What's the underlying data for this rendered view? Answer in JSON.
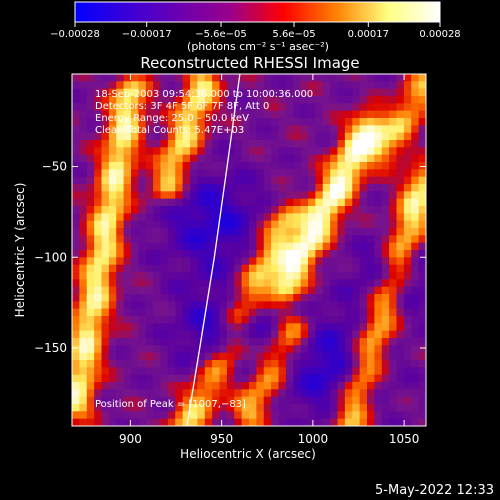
{
  "chart_data": {
    "type": "heatmap",
    "title": "Reconstructed RHESSI Image",
    "xlabel": "Heliocentric X (arcsec)",
    "ylabel": "Heliocentric Y (arcsec)",
    "xlim": [
      868,
      1062
    ],
    "ylim": [
      -193,
      1
    ],
    "x_ticks": [
      900,
      950,
      1000,
      1050
    ],
    "x_tick_labels": [
      "900",
      "950",
      "1000",
      "1050"
    ],
    "y_ticks": [
      -50,
      -100,
      -150
    ],
    "y_tick_labels": [
      "−50",
      "−100",
      "−150"
    ],
    "colorbar": {
      "range": [
        -0.00028,
        0.00028
      ],
      "tick_values": [
        -0.00028,
        -0.00017,
        -5.6e-05,
        5.6e-05,
        0.00017,
        0.00028
      ],
      "tick_labels": [
        "−0.00028",
        "−0.00017",
        "−5.6e−05",
        "5.6e−05",
        "0.00017",
        "0.00028"
      ],
      "unit_label": "(photons cm⁻² s⁻¹ asec⁻²)",
      "colors": [
        "#0000ff",
        "#3a00d8",
        "#6a00b0",
        "#9a008a",
        "#ff0000",
        "#ff8000",
        "#ffff80",
        "#ffffff"
      ]
    },
    "annotations": [
      "18-Sep-2003 09:54:36.000 to 10:00:36.000",
      "Detectors: 3F 4F 5F 6F 7F 8F, Att 0",
      "Energy Range: 25.0 – 50.0 keV",
      "Clean     Total Counts: 5.47E+03",
      "Position of Peak = [1007,−83]"
    ],
    "limb_curve": [
      [
        960,
        1
      ],
      [
        953,
        -50
      ],
      [
        946,
        -100
      ],
      [
        938,
        -150
      ],
      [
        931,
        -193
      ]
    ],
    "bright_ridges": [
      {
        "from": [
          870,
          -180
        ],
        "to": [
          900,
          -10
        ],
        "intensity": 0.85
      },
      {
        "from": [
          920,
          -60
        ],
        "to": [
          940,
          -5
        ],
        "intensity": 0.8
      },
      {
        "from": [
          960,
          -130
        ],
        "to": [
          985,
          -80
        ],
        "intensity": 0.75
      },
      {
        "from": [
          965,
          -185
        ],
        "to": [
          990,
          -140
        ],
        "intensity": 0.7
      },
      {
        "from": [
          985,
          -115
        ],
        "to": [
          1030,
          -30
        ],
        "intensity": 1.0
      },
      {
        "from": [
          1020,
          -190
        ],
        "to": [
          1060,
          -60
        ],
        "intensity": 0.85
      },
      {
        "from": [
          1040,
          -40
        ],
        "to": [
          1062,
          -5
        ],
        "intensity": 0.6
      },
      {
        "from": [
          930,
          -193
        ],
        "to": [
          955,
          -150
        ],
        "intensity": 0.7
      }
    ],
    "dim_regions": [
      {
        "center": [
          945,
          -80
        ],
        "radius": 20
      },
      {
        "center": [
          950,
          -140
        ],
        "radius": 18
      },
      {
        "center": [
          1010,
          -160
        ],
        "radius": 22
      },
      {
        "center": [
          1045,
          -110
        ],
        "radius": 15
      }
    ]
  },
  "footer": {
    "timestamp": "5-May-2022 12:33"
  }
}
